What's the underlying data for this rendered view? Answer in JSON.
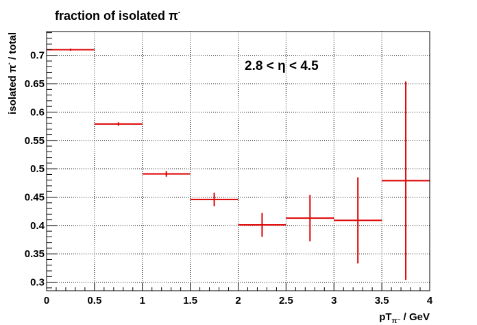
{
  "chart_data": {
    "type": "scatter",
    "title": "fraction of isolated π⁻",
    "title_main": "fraction of isolated π",
    "title_sup": "-",
    "xlabel_main": "pT",
    "xlabel_sub": "π⁻",
    "xlabel_rest": " / GeV",
    "ylabel_main": "isolated π",
    "ylabel_sup": "-",
    "ylabel_rest": " / total",
    "annotation": "2.8 < η < 4.5",
    "xlim": [
      0,
      4
    ],
    "ylim": [
      0.285,
      0.742
    ],
    "grid": true,
    "x_ticks": [
      "0",
      "0.5",
      "1",
      "1.5",
      "2",
      "2.5",
      "3",
      "3.5",
      "4"
    ],
    "y_ticks": [
      "0.3",
      "0.35",
      "0.4",
      "0.45",
      "0.5",
      "0.55",
      "0.6",
      "0.65",
      "0.7"
    ],
    "series": [
      {
        "color": "#dd0000",
        "points": [
          {
            "x": 0.25,
            "y": 0.71,
            "xerr": 0.25,
            "yerr": 0.002
          },
          {
            "x": 0.75,
            "y": 0.579,
            "xerr": 0.25,
            "yerr": 0.003
          },
          {
            "x": 1.25,
            "y": 0.491,
            "xerr": 0.25,
            "yerr": 0.005
          },
          {
            "x": 1.75,
            "y": 0.446,
            "xerr": 0.25,
            "yerr": 0.012
          },
          {
            "x": 2.25,
            "y": 0.401,
            "xerr": 0.25,
            "yerr": 0.021
          },
          {
            "x": 2.75,
            "y": 0.413,
            "xerr": 0.25,
            "yerr": 0.041
          },
          {
            "x": 3.25,
            "y": 0.409,
            "xerr": 0.25,
            "yerr": 0.076
          },
          {
            "x": 3.75,
            "y": 0.479,
            "xerr": 0.25,
            "yerr": 0.175
          }
        ]
      }
    ]
  }
}
